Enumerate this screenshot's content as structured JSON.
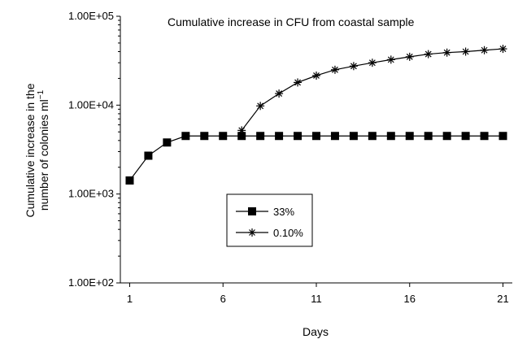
{
  "chart_data": {
    "type": "line",
    "title": "Cumulative increase in CFU from coastal sample",
    "xlabel": "Days",
    "ylabel_line1": "Cumulative increase in the",
    "ylabel_line2": "number of colonies ml",
    "ylabel_superscript": "−1",
    "yscale": "log",
    "ylim": [
      100,
      100000
    ],
    "xlim": [
      0.5,
      21.5
    ],
    "x_ticks": [
      1,
      6,
      11,
      16,
      21
    ],
    "y_ticks": [
      {
        "value": 100,
        "label": "1.00E+02"
      },
      {
        "value": 1000,
        "label": "1.00E+03"
      },
      {
        "value": 10000,
        "label": "1.00E+04"
      },
      {
        "value": 100000,
        "label": "1.00E+05"
      }
    ],
    "grid": false,
    "legend_position": "middle-center",
    "series": [
      {
        "name": "33%",
        "marker": "square",
        "color": "#000000",
        "points": [
          [
            1,
            1420
          ],
          [
            2,
            2700
          ],
          [
            3,
            3800
          ],
          [
            4,
            4500
          ],
          [
            5,
            4500
          ],
          [
            6,
            4500
          ],
          [
            7,
            4500
          ],
          [
            8,
            4500
          ],
          [
            9,
            4500
          ],
          [
            10,
            4500
          ],
          [
            11,
            4500
          ],
          [
            12,
            4500
          ],
          [
            13,
            4500
          ],
          [
            14,
            4500
          ],
          [
            15,
            4500
          ],
          [
            16,
            4500
          ],
          [
            17,
            4500
          ],
          [
            18,
            4500
          ],
          [
            19,
            4500
          ],
          [
            20,
            4500
          ],
          [
            21,
            4500
          ]
        ]
      },
      {
        "name": "0.10%",
        "marker": "asterisk",
        "color": "#000000",
        "points": [
          [
            7,
            5200
          ],
          [
            8,
            9800
          ],
          [
            9,
            13500
          ],
          [
            10,
            18000
          ],
          [
            11,
            21500
          ],
          [
            12,
            25000
          ],
          [
            13,
            27500
          ],
          [
            14,
            30000
          ],
          [
            15,
            32500
          ],
          [
            16,
            35000
          ],
          [
            17,
            37500
          ],
          [
            18,
            39000
          ],
          [
            19,
            40000
          ],
          [
            20,
            41500
          ],
          [
            21,
            43000
          ]
        ]
      }
    ]
  }
}
